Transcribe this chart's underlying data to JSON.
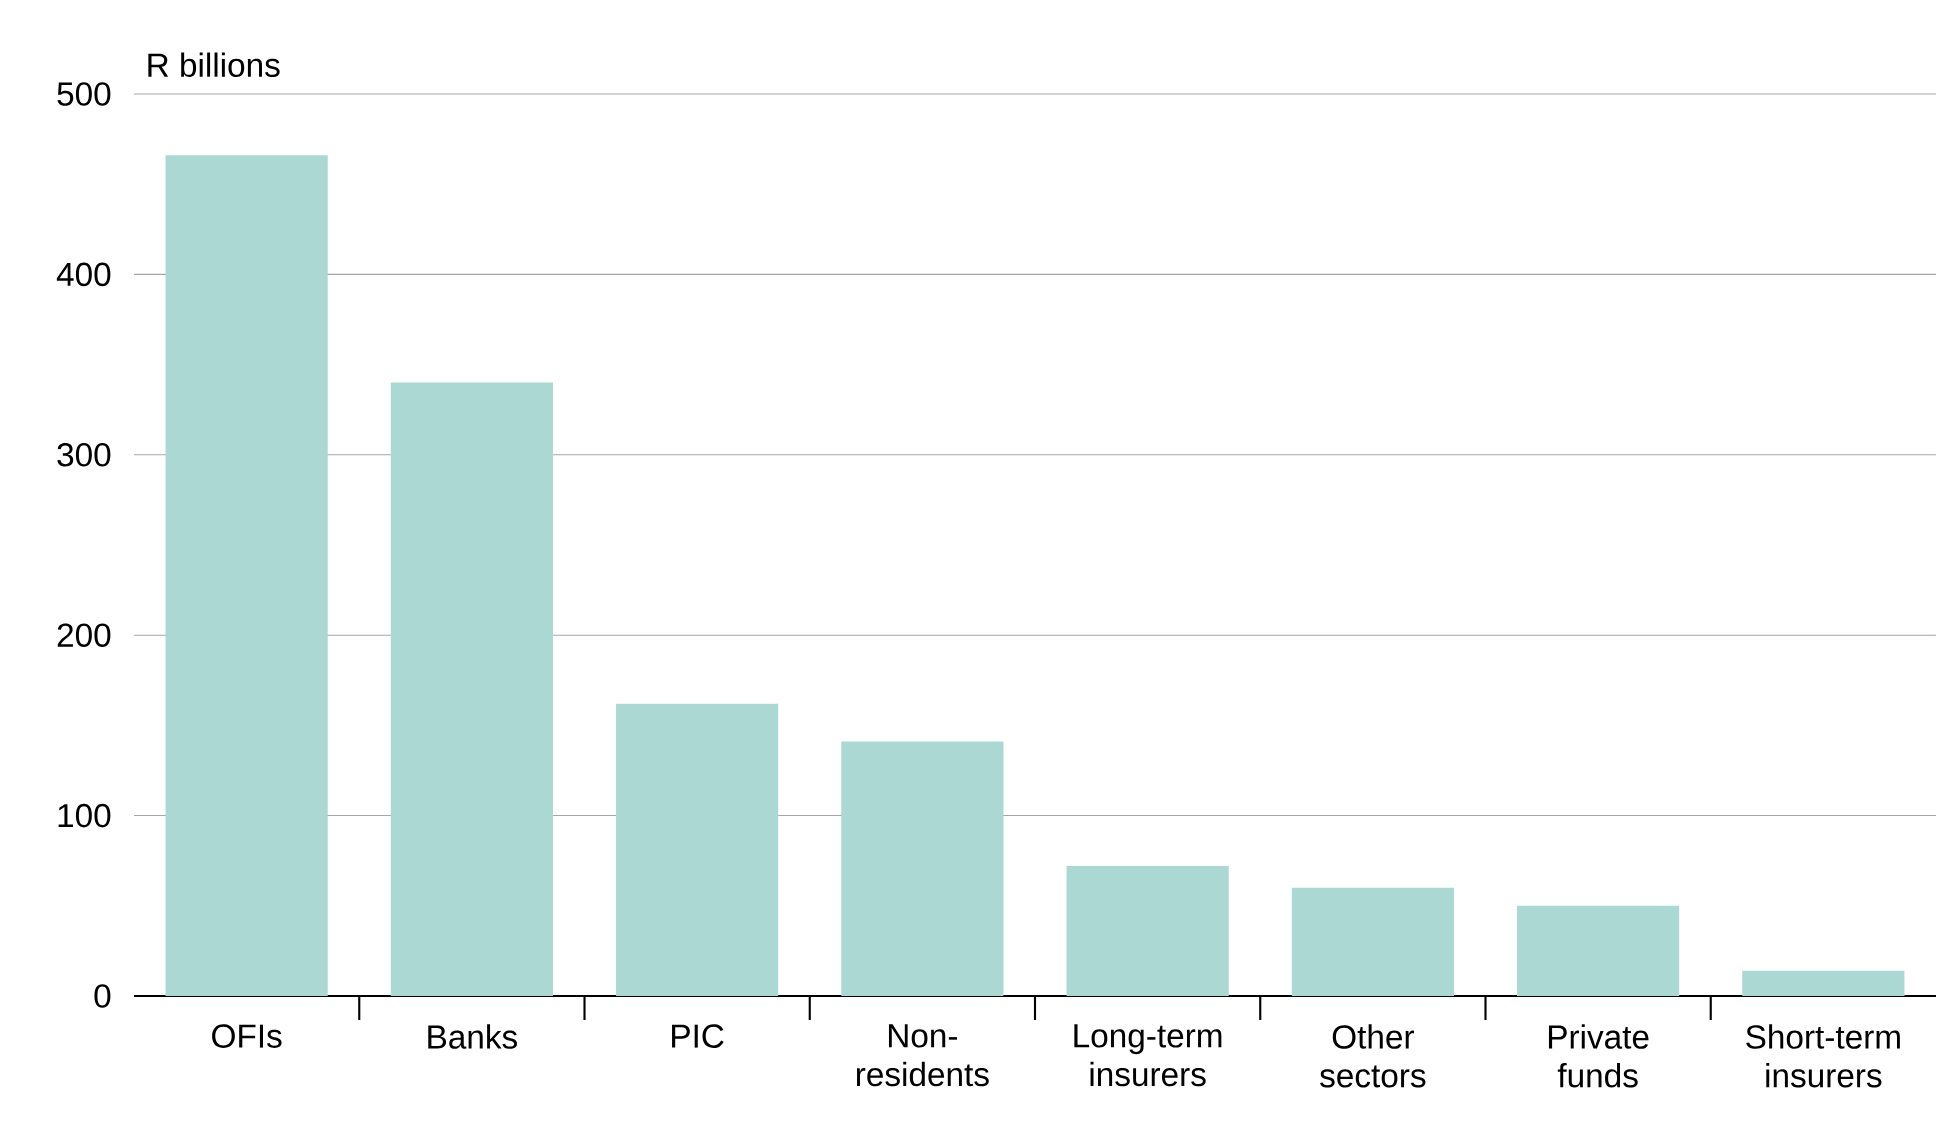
{
  "chart_data": {
    "type": "bar",
    "ylabel": "R billions",
    "categories": [
      "OFIs",
      "Banks",
      "PIC",
      "Non-residents",
      "Long-term insurers",
      "Other sectors",
      "Private funds",
      "Short-term insurers"
    ],
    "values": [
      466,
      340,
      162,
      141,
      72,
      60,
      50,
      14
    ],
    "color": "#acd8d3",
    "ylim": [
      0,
      500
    ],
    "yticks": [
      0,
      100,
      200,
      300,
      400,
      500
    ],
    "grid": "y"
  }
}
